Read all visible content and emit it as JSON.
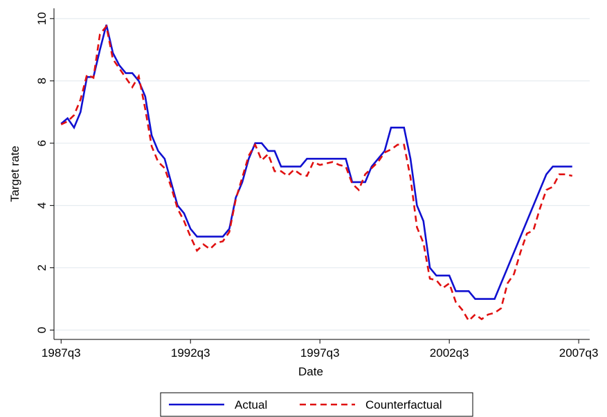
{
  "chart_data": {
    "type": "line",
    "x_label": "Date",
    "y_label": "Target rate",
    "x": [
      110,
      111,
      112,
      113,
      114,
      115,
      116,
      117,
      118,
      119,
      120,
      121,
      122,
      123,
      124,
      125,
      126,
      127,
      128,
      129,
      130,
      131,
      132,
      133,
      134,
      135,
      136,
      137,
      138,
      139,
      140,
      141,
      142,
      143,
      144,
      145,
      146,
      147,
      148,
      149,
      150,
      151,
      152,
      153,
      154,
      155,
      156,
      157,
      158,
      159,
      160,
      161,
      162,
      163,
      164,
      165,
      166,
      167,
      168,
      169,
      170,
      171,
      172,
      173,
      174,
      175,
      176,
      177,
      178,
      179,
      180,
      181,
      182,
      183,
      184,
      185,
      186,
      187,
      188,
      189
    ],
    "series": [
      {
        "name": "Actual",
        "color": "#1010d0",
        "dash": false,
        "values": [
          6.625,
          6.8,
          6.5,
          7.0,
          8.125,
          8.125,
          9.0,
          9.8,
          8.9,
          8.5,
          8.25,
          8.25,
          8.0,
          7.5,
          6.25,
          5.75,
          5.5,
          4.75,
          4.0,
          3.75,
          3.25,
          3.0,
          3.0,
          3.0,
          3.0,
          3.0,
          3.25,
          4.25,
          4.75,
          5.5,
          6.0,
          6.0,
          5.75,
          5.75,
          5.25,
          5.25,
          5.25,
          5.25,
          5.5,
          5.5,
          5.5,
          5.5,
          5.5,
          5.5,
          5.5,
          4.75,
          4.75,
          4.75,
          5.25,
          5.5,
          5.75,
          6.5,
          6.5,
          6.5,
          5.5,
          4.0,
          3.5,
          2.0,
          1.75,
          1.75,
          1.75,
          1.25,
          1.25,
          1.25,
          1.0,
          1.0,
          1.0,
          1.0,
          1.5,
          2.0,
          2.5,
          3.0,
          3.5,
          4.0,
          4.5,
          5.0,
          5.25,
          5.25,
          5.25,
          5.25
        ]
      },
      {
        "name": "Counterfactual",
        "color": "#e01010",
        "dash": true,
        "values": [
          6.6,
          6.7,
          6.9,
          7.4,
          8.2,
          8.1,
          9.5,
          9.75,
          8.7,
          8.4,
          8.1,
          7.8,
          8.15,
          7.1,
          5.9,
          5.4,
          5.2,
          4.6,
          3.9,
          3.5,
          3.0,
          2.55,
          2.75,
          2.6,
          2.8,
          2.85,
          3.15,
          4.2,
          4.9,
          5.6,
          5.95,
          5.45,
          5.65,
          5.1,
          5.1,
          4.95,
          5.15,
          5.0,
          4.95,
          5.4,
          5.3,
          5.35,
          5.4,
          5.3,
          5.25,
          4.7,
          4.5,
          5.0,
          5.2,
          5.4,
          5.7,
          5.8,
          5.95,
          5.95,
          4.9,
          3.3,
          2.8,
          1.65,
          1.6,
          1.35,
          1.5,
          0.9,
          0.65,
          0.3,
          0.5,
          0.35,
          0.5,
          0.55,
          0.7,
          1.5,
          1.8,
          2.5,
          3.1,
          3.2,
          3.9,
          4.5,
          4.6,
          5.0,
          5.0,
          4.95
        ]
      }
    ],
    "xlim": [
      108.9,
      191.7
    ],
    "xticks": [
      {
        "value": 110,
        "label": "1987q3"
      },
      {
        "value": 130,
        "label": "1992q3"
      },
      {
        "value": 150,
        "label": "1997q3"
      },
      {
        "value": 170,
        "label": "2002q3"
      },
      {
        "value": 190,
        "label": "2007q3"
      }
    ],
    "ylim": [
      -0.3,
      10.33
    ],
    "yticks": [
      0,
      2,
      4,
      6,
      8,
      10
    ],
    "grid": true,
    "legend": "bottom"
  }
}
